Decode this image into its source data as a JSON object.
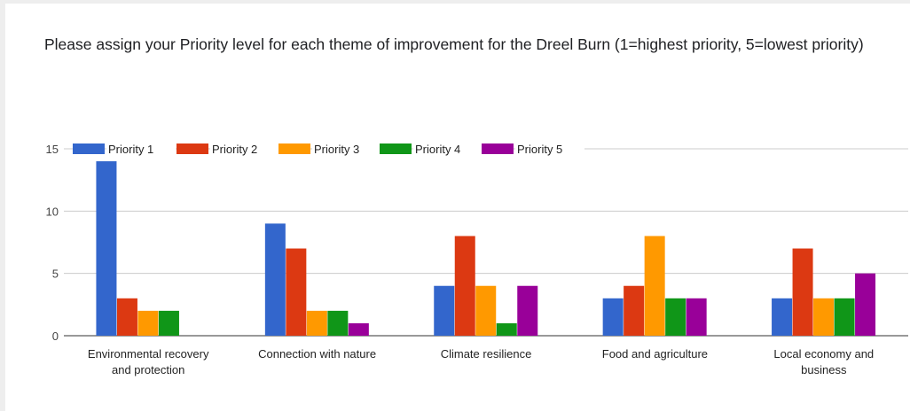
{
  "question": "Please assign your Priority level for each theme of improvement for the Dreel Burn (1=highest priority, 5=lowest priority)",
  "chart_data": {
    "type": "bar",
    "title": "",
    "xlabel": "",
    "ylabel": "",
    "ylim": [
      0,
      15
    ],
    "yticks": [
      "0",
      "5",
      "10",
      "15"
    ],
    "grid": true,
    "legend_position": "top-left",
    "categories": [
      [
        "Environmental recovery",
        "and protection"
      ],
      [
        "Connection with nature"
      ],
      [
        "Climate resilience"
      ],
      [
        "Food and agriculture"
      ],
      [
        "Local economy and",
        "business"
      ]
    ],
    "series": [
      {
        "name": "Priority 1",
        "color": "#3366cc",
        "values": [
          14,
          9,
          4,
          3,
          3
        ]
      },
      {
        "name": "Priority 2",
        "color": "#dc3912",
        "values": [
          3,
          7,
          8,
          4,
          7
        ]
      },
      {
        "name": "Priority 3",
        "color": "#ff9900",
        "values": [
          2,
          2,
          4,
          8,
          3
        ]
      },
      {
        "name": "Priority 4",
        "color": "#109618",
        "values": [
          2,
          2,
          1,
          3,
          3
        ]
      },
      {
        "name": "Priority 5",
        "color": "#990099",
        "values": [
          0,
          1,
          4,
          3,
          5
        ]
      }
    ]
  }
}
